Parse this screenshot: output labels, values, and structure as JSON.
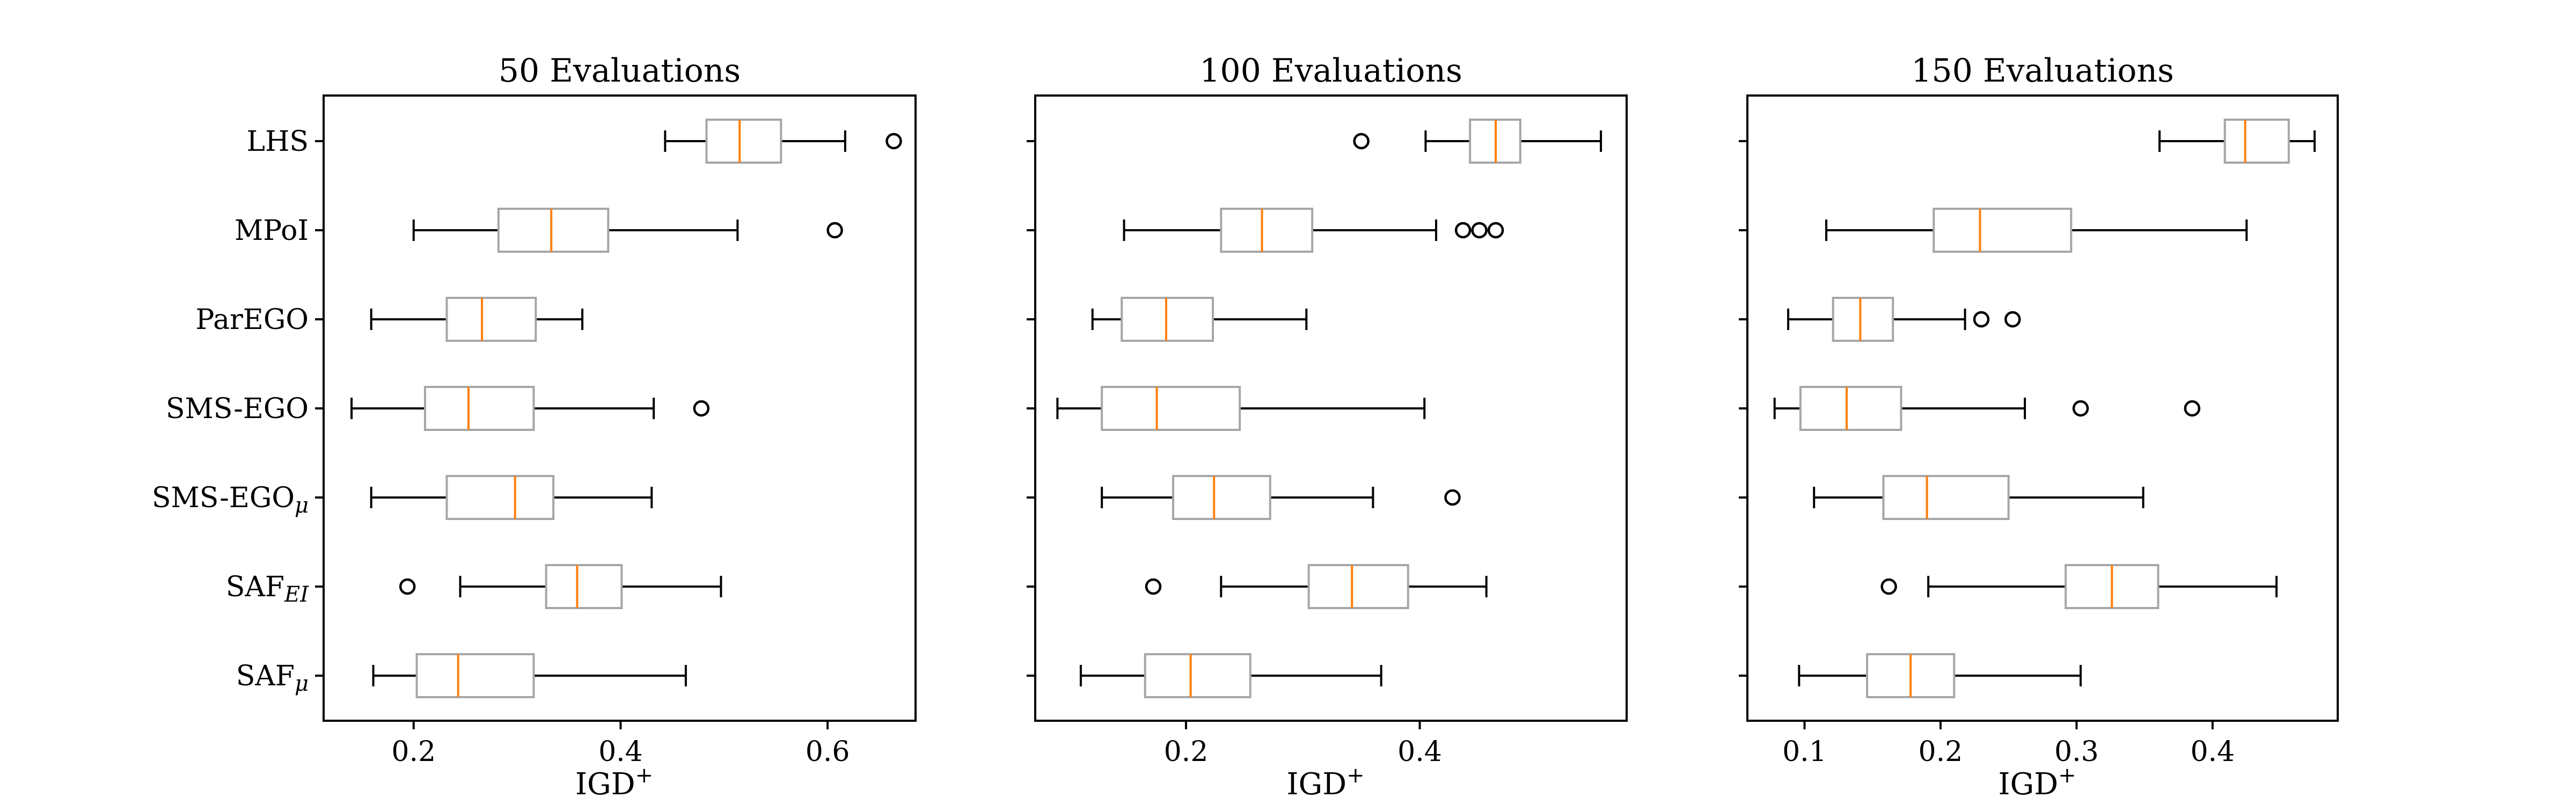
{
  "chart_data": {
    "type": "boxplot",
    "xlabel": "IGD",
    "xlabel_sup": "+",
    "categories": [
      {
        "base": "LHS",
        "sub": ""
      },
      {
        "base": "MPoI",
        "sub": ""
      },
      {
        "base": "ParEGO",
        "sub": ""
      },
      {
        "base": "SMS-EGO",
        "sub": ""
      },
      {
        "base": "SMS-EGO",
        "sub": "μ"
      },
      {
        "base": "SAF",
        "sub": "EI"
      },
      {
        "base": "SAF",
        "sub": "μ"
      }
    ],
    "panels": [
      {
        "title": "50 Evaluations",
        "xlim": [
          0.113,
          0.685
        ],
        "xticks": [
          0.2,
          0.4,
          0.6
        ],
        "boxes": [
          {
            "whislo": 0.443,
            "q1": 0.483,
            "med": 0.515,
            "q3": 0.555,
            "whishi": 0.617,
            "fliers": [
              0.664
            ]
          },
          {
            "whislo": 0.2,
            "q1": 0.282,
            "med": 0.333,
            "q3": 0.388,
            "whishi": 0.513,
            "fliers": [
              0.607
            ]
          },
          {
            "whislo": 0.159,
            "q1": 0.232,
            "med": 0.266,
            "q3": 0.318,
            "whishi": 0.363,
            "fliers": []
          },
          {
            "whislo": 0.14,
            "q1": 0.211,
            "med": 0.253,
            "q3": 0.316,
            "whishi": 0.432,
            "fliers": [
              0.478
            ]
          },
          {
            "whislo": 0.159,
            "q1": 0.232,
            "med": 0.298,
            "q3": 0.335,
            "whishi": 0.43,
            "fliers": []
          },
          {
            "whislo": 0.245,
            "q1": 0.328,
            "med": 0.358,
            "q3": 0.401,
            "whishi": 0.497,
            "fliers": [
              0.194
            ]
          },
          {
            "whislo": 0.161,
            "q1": 0.203,
            "med": 0.243,
            "q3": 0.316,
            "whishi": 0.463,
            "fliers": []
          }
        ]
      },
      {
        "title": "100 Evaluations",
        "xlim": [
          0.071,
          0.577
        ],
        "xticks": [
          0.2,
          0.4
        ],
        "boxes": [
          {
            "whislo": 0.405,
            "q1": 0.443,
            "med": 0.465,
            "q3": 0.486,
            "whishi": 0.555,
            "fliers": [
              0.35
            ]
          },
          {
            "whislo": 0.147,
            "q1": 0.23,
            "med": 0.265,
            "q3": 0.308,
            "whishi": 0.414,
            "fliers": [
              0.437,
              0.451,
              0.465
            ]
          },
          {
            "whislo": 0.12,
            "q1": 0.145,
            "med": 0.183,
            "q3": 0.223,
            "whishi": 0.303,
            "fliers": []
          },
          {
            "whislo": 0.09,
            "q1": 0.128,
            "med": 0.175,
            "q3": 0.246,
            "whishi": 0.404,
            "fliers": []
          },
          {
            "whislo": 0.128,
            "q1": 0.189,
            "med": 0.224,
            "q3": 0.272,
            "whishi": 0.36,
            "fliers": [
              0.428
            ]
          },
          {
            "whislo": 0.23,
            "q1": 0.305,
            "med": 0.342,
            "q3": 0.39,
            "whishi": 0.457,
            "fliers": [
              0.172
            ]
          },
          {
            "whislo": 0.11,
            "q1": 0.165,
            "med": 0.204,
            "q3": 0.255,
            "whishi": 0.367,
            "fliers": []
          }
        ]
      },
      {
        "title": "150 Evaluations",
        "xlim": [
          0.058,
          0.492
        ],
        "xticks": [
          0.1,
          0.2,
          0.3,
          0.4
        ],
        "boxes": [
          {
            "whislo": 0.361,
            "q1": 0.409,
            "med": 0.424,
            "q3": 0.456,
            "whishi": 0.475,
            "fliers": []
          },
          {
            "whislo": 0.116,
            "q1": 0.195,
            "med": 0.229,
            "q3": 0.296,
            "whishi": 0.425,
            "fliers": []
          },
          {
            "whislo": 0.088,
            "q1": 0.121,
            "med": 0.141,
            "q3": 0.165,
            "whishi": 0.218,
            "fliers": [
              0.23,
              0.253
            ]
          },
          {
            "whislo": 0.078,
            "q1": 0.097,
            "med": 0.131,
            "q3": 0.171,
            "whishi": 0.262,
            "fliers": [
              0.303,
              0.385
            ]
          },
          {
            "whislo": 0.107,
            "q1": 0.158,
            "med": 0.19,
            "q3": 0.25,
            "whishi": 0.349,
            "fliers": []
          },
          {
            "whislo": 0.191,
            "q1": 0.292,
            "med": 0.326,
            "q3": 0.36,
            "whishi": 0.447,
            "fliers": [
              0.162
            ]
          },
          {
            "whislo": 0.096,
            "q1": 0.146,
            "med": 0.178,
            "q3": 0.21,
            "whishi": 0.303,
            "fliers": []
          }
        ]
      }
    ]
  }
}
